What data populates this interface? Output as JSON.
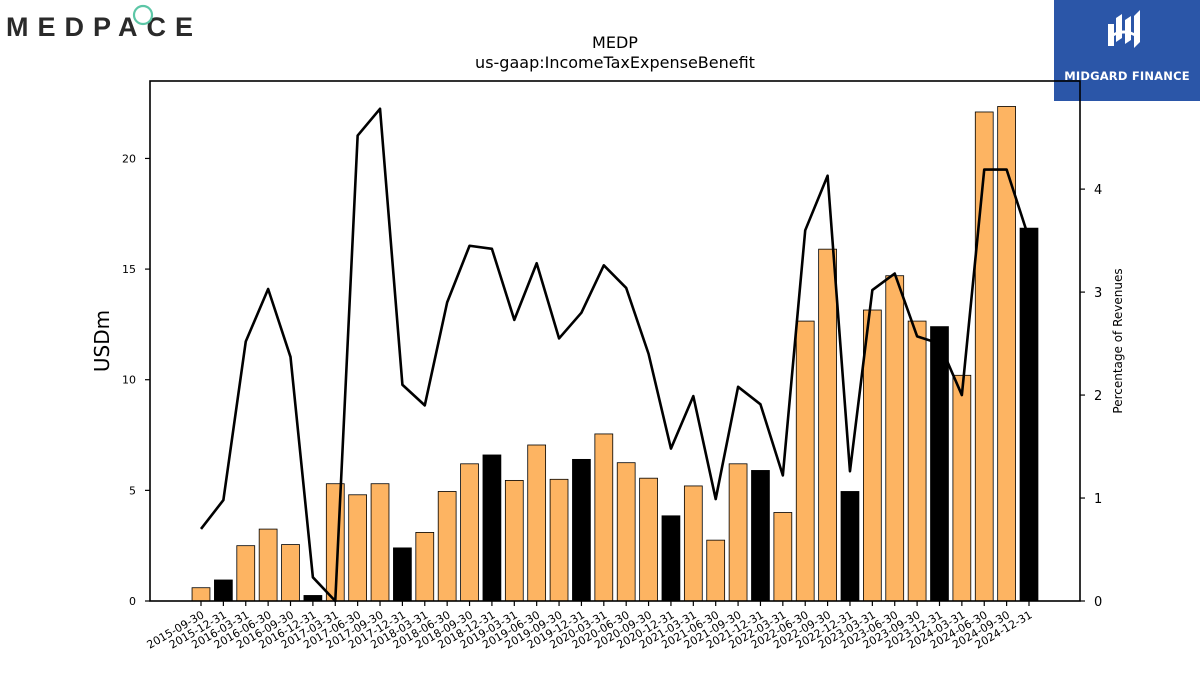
{
  "brand": {
    "left_logo_text": "MEDPACE",
    "right_logo_text": "MIDGARD FINANCE"
  },
  "colors": {
    "bar_fill": "#fdb462",
    "bar_highlight": "#000000",
    "line": "#000000",
    "midgard_bg": "#2b56a8"
  },
  "chart_data": {
    "type": "bar",
    "title": "MEDP",
    "subtitle": "us-gaap:IncomeTaxExpenseBenefit",
    "ylabel": "USDm",
    "y2label": "Percentage of Revenues",
    "ylim": [
      0,
      23.5
    ],
    "y2lim": [
      0,
      5.05
    ],
    "yticks": [
      0,
      5,
      10,
      15,
      20
    ],
    "y2ticks": [
      0,
      1,
      2,
      3,
      4
    ],
    "grid": false,
    "categories": [
      "2015-09-30",
      "2015-12-31",
      "2016-03-31",
      "2016-06-30",
      "2016-09-30",
      "2016-12-31",
      "2017-03-31",
      "2017-06-30",
      "2017-09-30",
      "2017-12-31",
      "2018-03-31",
      "2018-06-30",
      "2018-09-30",
      "2018-12-31",
      "2019-03-31",
      "2019-06-30",
      "2019-09-30",
      "2019-12-31",
      "2020-03-31",
      "2020-06-30",
      "2020-09-30",
      "2020-12-31",
      "2021-03-31",
      "2021-06-30",
      "2021-09-30",
      "2021-12-31",
      "2022-03-31",
      "2022-06-30",
      "2022-09-30",
      "2022-12-31",
      "2023-03-31",
      "2023-06-30",
      "2023-09-30",
      "2023-12-31",
      "2024-03-31",
      "2024-06-30",
      "2024-09-30",
      "2024-12-31"
    ],
    "series": [
      {
        "kind": "bar",
        "values": [
          0.6,
          0.95,
          2.5,
          3.25,
          2.55,
          0.25,
          5.3,
          4.8,
          5.3,
          2.4,
          3.1,
          4.95,
          6.2,
          6.6,
          5.45,
          7.05,
          5.5,
          6.4,
          7.55,
          6.25,
          5.55,
          3.85,
          5.2,
          2.75,
          6.2,
          5.9,
          4.0,
          12.65,
          15.9,
          4.95,
          13.15,
          14.7,
          12.65,
          12.4,
          10.2,
          22.1,
          22.35,
          16.85
        ],
        "highlight": [
          false,
          true,
          false,
          false,
          false,
          true,
          false,
          false,
          false,
          true,
          false,
          false,
          false,
          true,
          false,
          false,
          false,
          true,
          false,
          false,
          false,
          true,
          false,
          false,
          false,
          true,
          false,
          false,
          false,
          true,
          false,
          false,
          false,
          true,
          false,
          false,
          false,
          true
        ]
      },
      {
        "kind": "line",
        "axis": "right",
        "values": [
          0.7,
          0.98,
          2.52,
          3.03,
          2.37,
          0.23,
          0.0,
          4.52,
          4.78,
          2.1,
          1.9,
          2.9,
          3.45,
          3.42,
          2.73,
          3.28,
          2.55,
          2.8,
          3.26,
          3.04,
          2.4,
          1.48,
          1.99,
          0.99,
          2.08,
          1.91,
          1.22,
          3.6,
          4.13,
          1.26,
          3.02,
          3.18,
          2.57,
          2.5,
          2.0,
          4.19,
          4.19,
          3.52
        ]
      }
    ]
  }
}
